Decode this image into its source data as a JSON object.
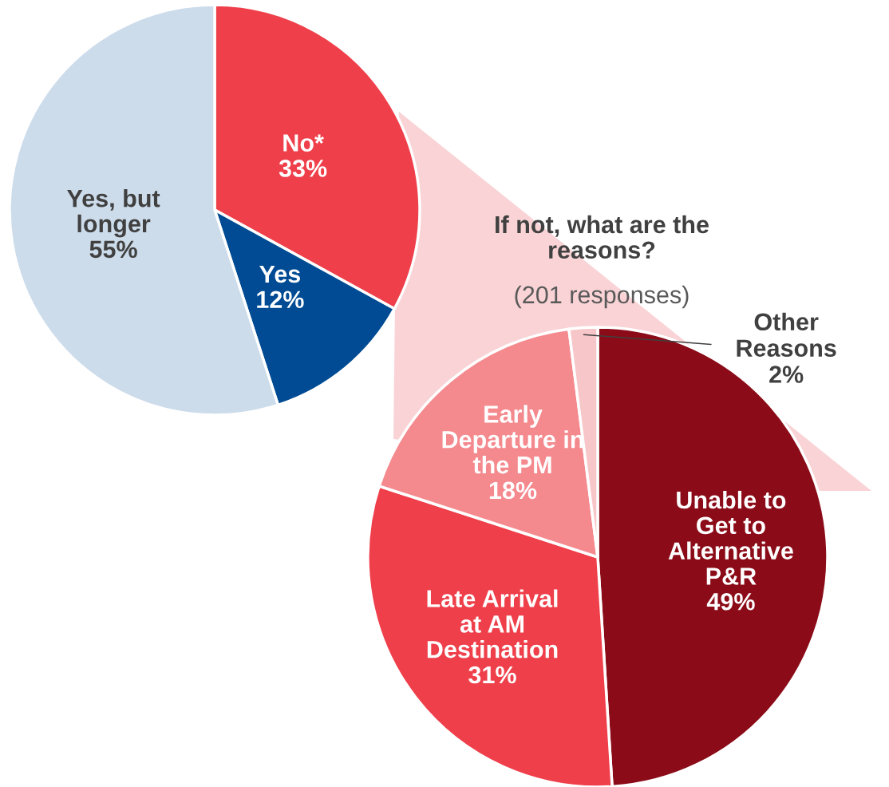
{
  "chart_data": [
    {
      "type": "pie",
      "categories": [
        "No*",
        "Yes",
        "Yes, but\nlonger"
      ],
      "values": [
        33,
        12,
        55
      ],
      "colors": [
        "#ef3f4a",
        "#004b93",
        "#cddceb"
      ],
      "value_labels": [
        "33%",
        "12%",
        "55%"
      ]
    },
    {
      "type": "pie",
      "title": "If not, what are the\nreasons?",
      "subtitle": "(201 responses)",
      "categories": [
        "Unable to\nGet to\nAlternative\nP&R",
        "Late Arrival\nat AM\nDestination",
        "Early\nDeparture in\nthe PM",
        "Other\nReasons"
      ],
      "values": [
        49,
        31,
        18,
        2
      ],
      "colors": [
        "#8b0c18",
        "#ef3f4a",
        "#f4898e",
        "#f7c6c8"
      ],
      "value_labels": [
        "49%",
        "31%",
        "18%",
        "2%"
      ]
    }
  ]
}
